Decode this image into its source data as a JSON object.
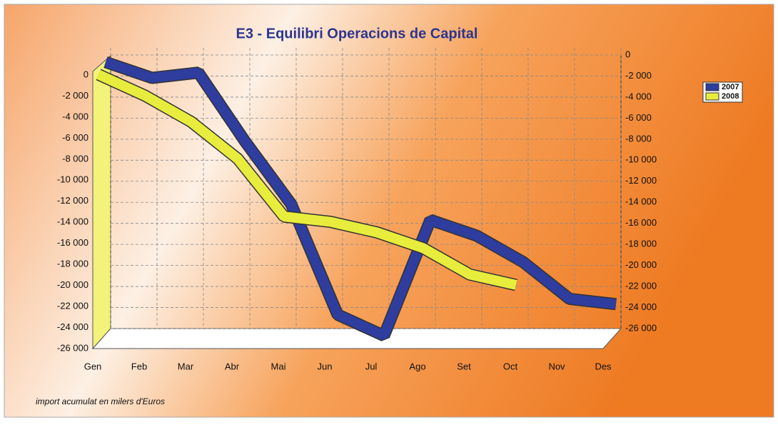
{
  "chart_data": {
    "type": "line",
    "title": "E3 - Equilibri Operacions de Capital",
    "footnote": "import acumulat en milers d'Euros",
    "categories": [
      "Gen",
      "Feb",
      "Mar",
      "Abr",
      "Mai",
      "Jun",
      "Jul",
      "Ago",
      "Set",
      "Oct",
      "Nov",
      "Des"
    ],
    "series": [
      {
        "name": "2007",
        "color": "#2e3d9e",
        "values": [
          0,
          -1500,
          -1000,
          -7500,
          -13500,
          -24000,
          -26000,
          -15000,
          -16500,
          -19000,
          -22500,
          -23000
        ]
      },
      {
        "name": "2008",
        "color": "#e8ec3c",
        "values": [
          -500,
          -2500,
          -5000,
          -8500,
          -14000,
          -14500,
          -15500,
          -17000,
          -19500,
          -20500,
          null,
          null
        ]
      }
    ],
    "ylim": [
      -26000,
      0
    ],
    "yticks": [
      {
        "value": 0,
        "label": "0"
      },
      {
        "value": -2000,
        "label": "-2 000"
      },
      {
        "value": -4000,
        "label": "-4 000"
      },
      {
        "value": -6000,
        "label": "-6 000"
      },
      {
        "value": -8000,
        "label": "-8 000"
      },
      {
        "value": -10000,
        "label": "-10 000"
      },
      {
        "value": -12000,
        "label": "-12 000"
      },
      {
        "value": -14000,
        "label": "-14 000"
      },
      {
        "value": -16000,
        "label": "-16 000"
      },
      {
        "value": -18000,
        "label": "-18 000"
      },
      {
        "value": -20000,
        "label": "-20 000"
      },
      {
        "value": -22000,
        "label": "-22 000"
      },
      {
        "value": -24000,
        "label": "-24 000"
      },
      {
        "value": -26000,
        "label": "-26 000"
      }
    ],
    "grid": true,
    "legend": "upper right"
  }
}
